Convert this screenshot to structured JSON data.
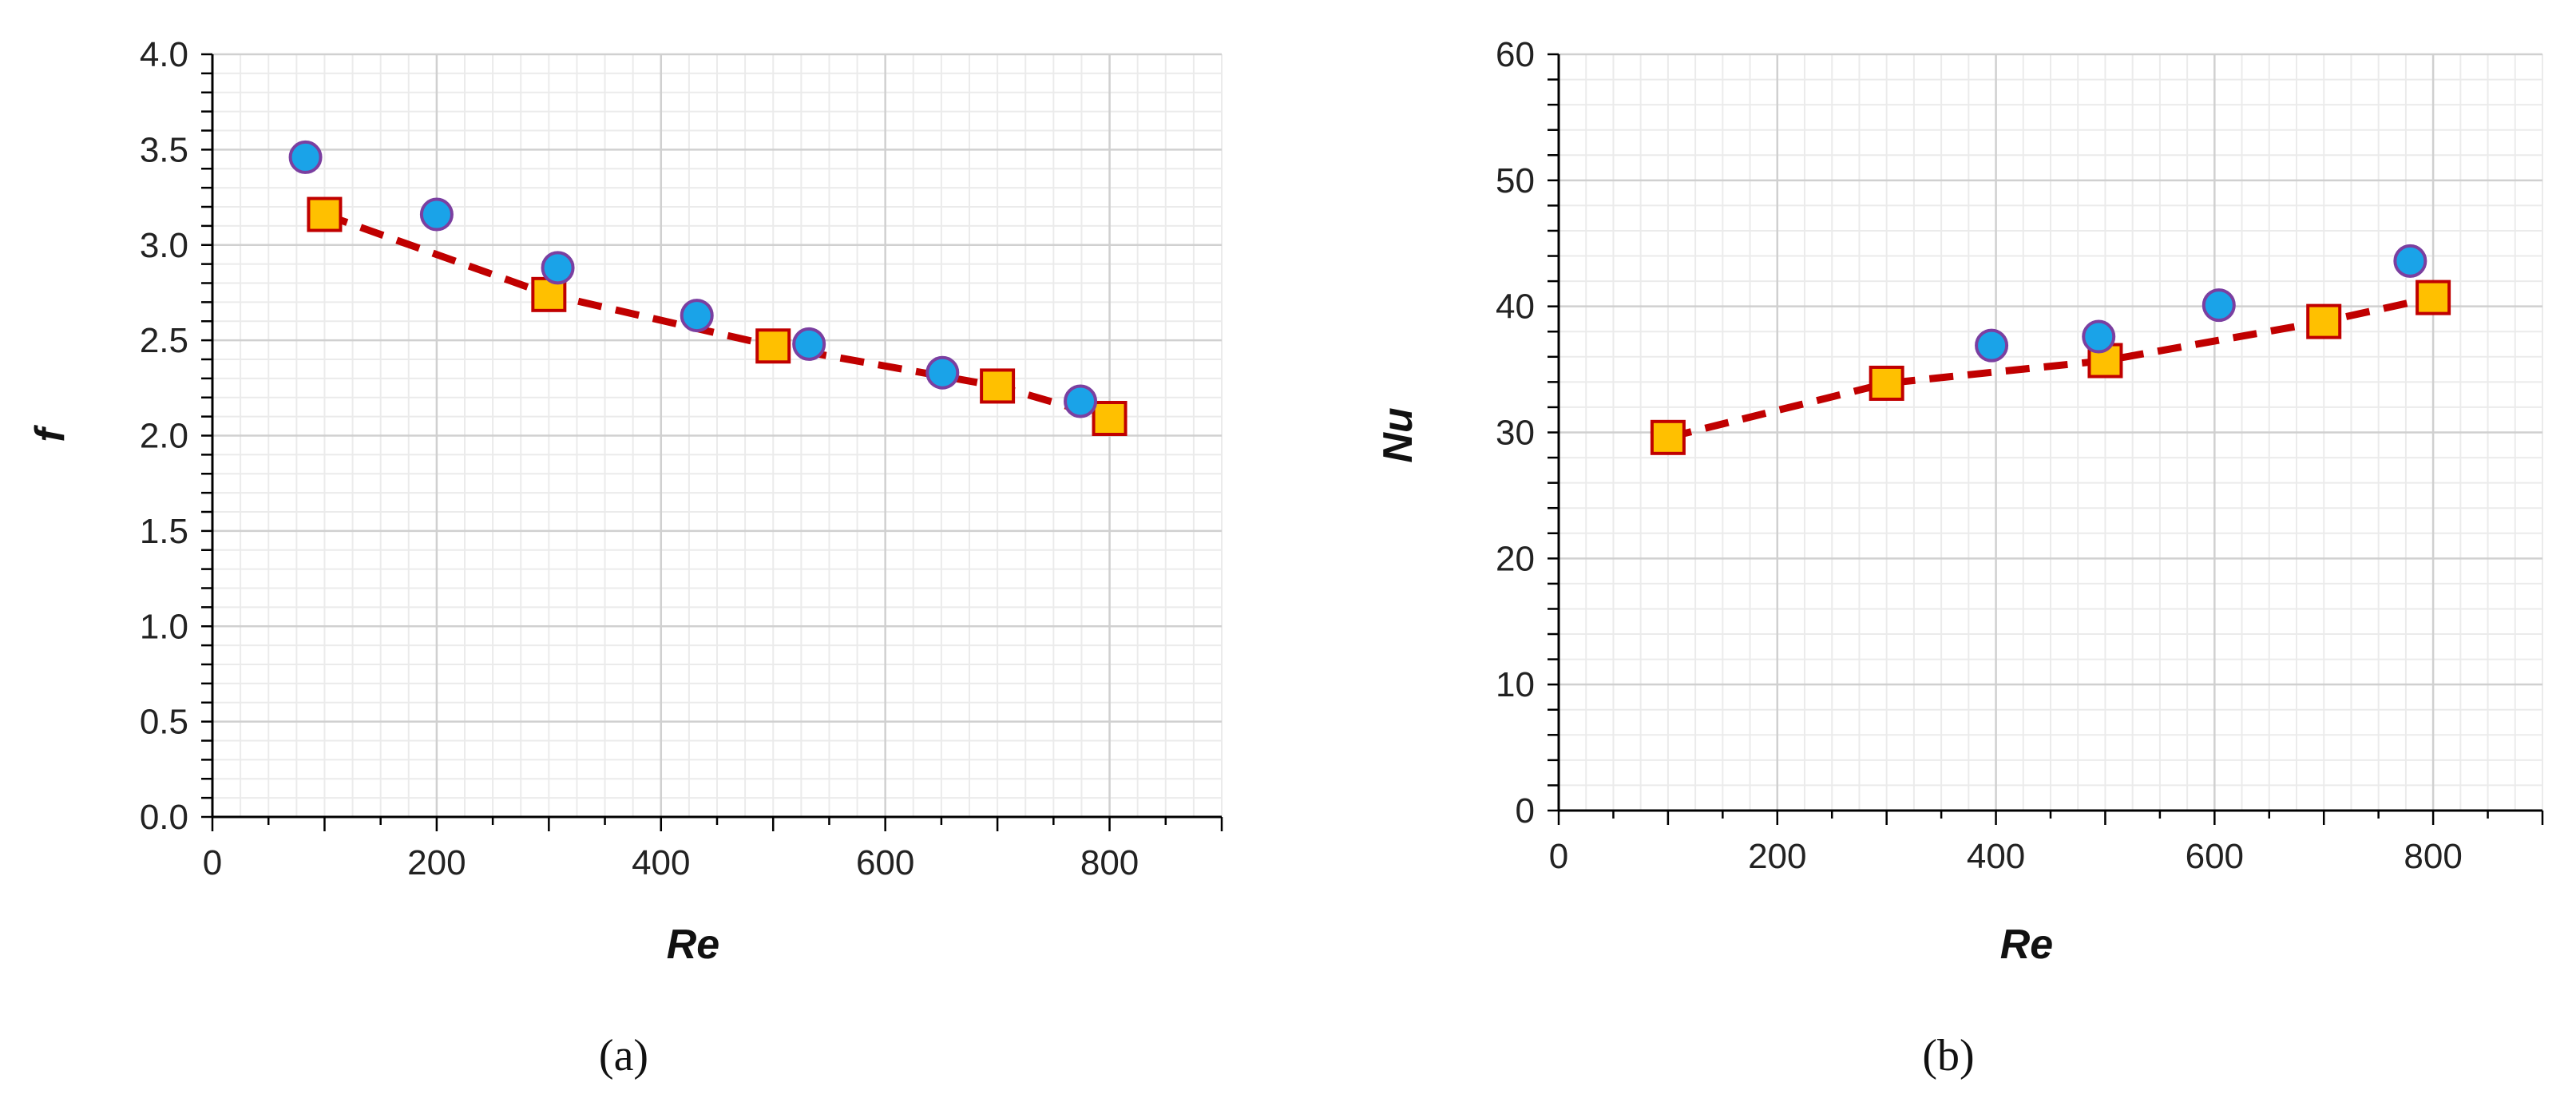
{
  "chart_data": [
    {
      "type": "scatter",
      "panel_label": "(a)",
      "xlabel": "Re",
      "ylabel": "f",
      "xlim": [
        0,
        900
      ],
      "ylim": [
        0,
        4
      ],
      "xticks": [
        0,
        200,
        400,
        600,
        800
      ],
      "xtick_labels": [
        "0",
        "200",
        "400",
        "600",
        "800"
      ],
      "yticks": [
        0,
        0.5,
        1,
        1.5,
        2,
        2.5,
        3,
        3.5,
        4
      ],
      "ytick_labels": [
        "0.0",
        "0.5",
        "1.0",
        "1.5",
        "2.0",
        "2.5",
        "3.0",
        "3.5",
        "4.0"
      ],
      "grid": true,
      "series": [
        {
          "marker": "circle",
          "color": "#1aa3e8",
          "edge": "#7b3fa0",
          "x": [
            83,
            200,
            308,
            432,
            532,
            651,
            774
          ],
          "y": [
            3.46,
            3.16,
            2.88,
            2.63,
            2.48,
            2.33,
            2.18
          ]
        },
        {
          "marker": "square",
          "color": "#ffc000",
          "edge": "#c00000",
          "x": [
            100,
            300,
            500,
            700,
            800
          ],
          "y": [
            3.16,
            2.74,
            2.47,
            2.26,
            2.09
          ]
        }
      ],
      "trendline": {
        "style": "dashed",
        "color": "#c00000",
        "x": [
          100,
          300,
          500,
          700,
          800
        ],
        "y": [
          3.16,
          2.74,
          2.47,
          2.26,
          2.09
        ]
      }
    },
    {
      "type": "scatter",
      "panel_label": "(b)",
      "xlabel": "Re",
      "ylabel": "Nu",
      "xlim": [
        0,
        900
      ],
      "ylim": [
        0,
        60
      ],
      "xticks": [
        0,
        200,
        400,
        600,
        800
      ],
      "xtick_labels": [
        "0",
        "200",
        "400",
        "600",
        "800"
      ],
      "yticks": [
        0,
        10,
        20,
        30,
        40,
        50,
        60
      ],
      "ytick_labels": [
        "0",
        "10",
        "20",
        "30",
        "40",
        "50",
        "60"
      ],
      "grid": true,
      "series": [
        {
          "marker": "circle",
          "color": "#1aa3e8",
          "edge": "#7b3fa0",
          "x": [
            396,
            494,
            604,
            779
          ],
          "y": [
            36.9,
            37.6,
            40.1,
            43.6
          ]
        },
        {
          "marker": "square",
          "color": "#ffc000",
          "edge": "#c00000",
          "x": [
            100,
            300,
            500,
            700,
            800
          ],
          "y": [
            29.6,
            33.9,
            35.7,
            38.8,
            40.7
          ]
        }
      ],
      "trendline": {
        "style": "dashed",
        "color": "#c00000",
        "x": [
          100,
          300,
          500,
          700,
          800
        ],
        "y": [
          29.6,
          33.9,
          35.7,
          38.8,
          40.7
        ]
      }
    }
  ]
}
